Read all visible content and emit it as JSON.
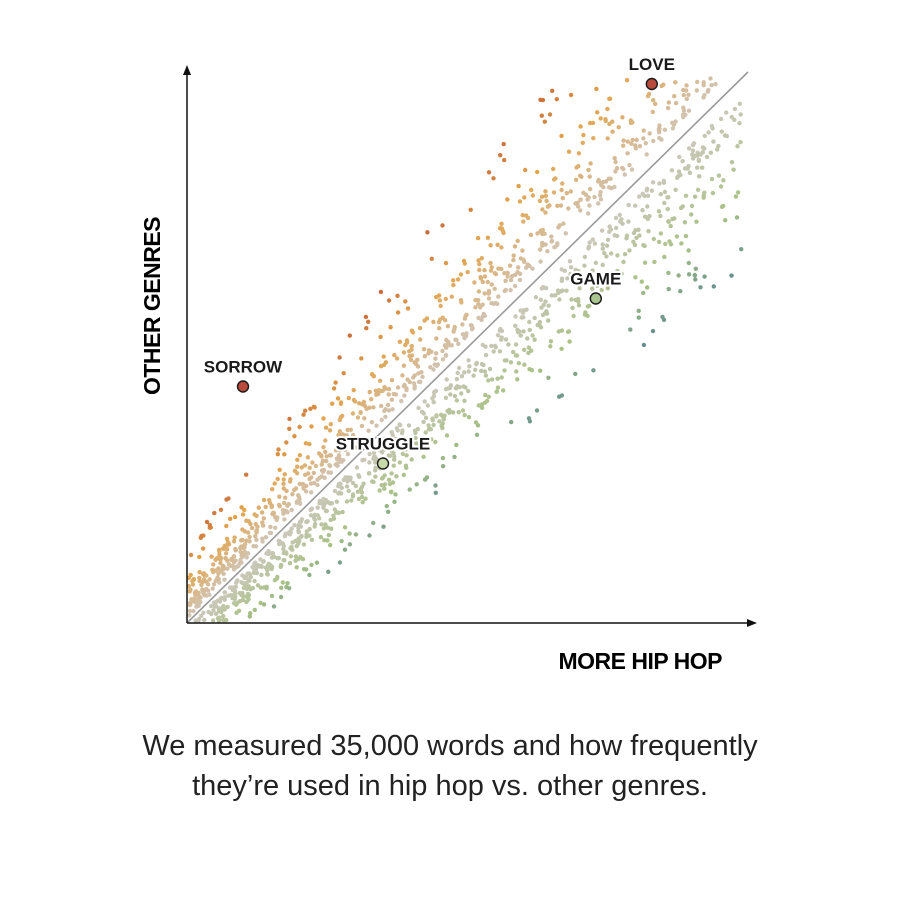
{
  "chart_data": {
    "type": "scatter",
    "title": "",
    "xlabel": "MORE HIP HOP",
    "ylabel": "OTHER GENRES",
    "legend": "none",
    "grid": false,
    "reference_line": "diagonal y = x",
    "colors": {
      "other_genres_high": "#b03a2e",
      "other_genres_mid": "#e4a44a",
      "neutral": "#cfc8c0",
      "hip_hop_mid": "#a9c285",
      "hip_hop_high": "#2f6796"
    },
    "sample_dot_count": 1900,
    "highlighted_words": [
      {
        "label": "LOVE",
        "x": 0.83,
        "y": 0.98,
        "color": "#b84a3b"
      },
      {
        "label": "GAME",
        "x": 0.73,
        "y": 0.59,
        "color": "#a9c48e"
      },
      {
        "label": "SORROW",
        "x": 0.1,
        "y": 0.43,
        "color": "#b84a3b"
      },
      {
        "label": "STRUGGLE",
        "x": 0.35,
        "y": 0.29,
        "color": "#c8d9a8"
      }
    ]
  },
  "caption": {
    "line1": "We measured 35,000 words and how frequently",
    "line2": "they’re used in hip hop vs. other genres."
  }
}
